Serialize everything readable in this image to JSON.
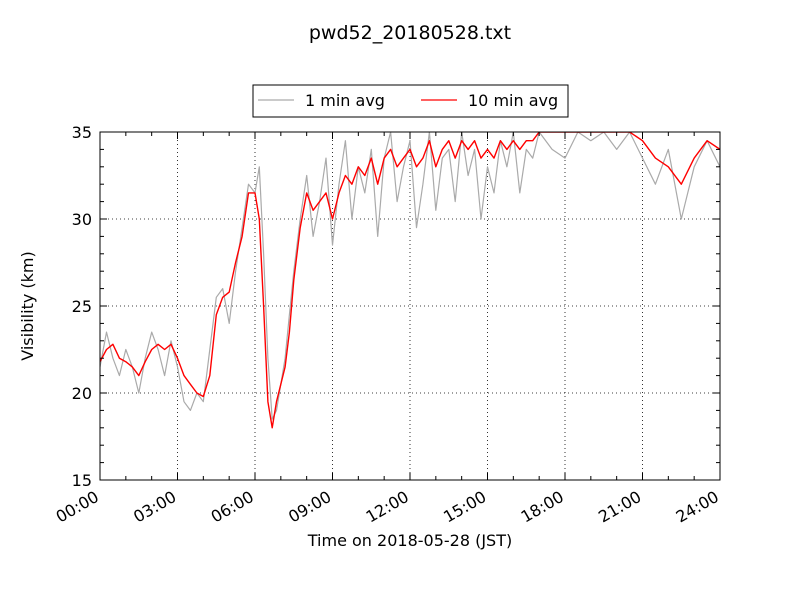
{
  "chart_data": {
    "type": "line",
    "title": "pwd52_20180528.txt",
    "xlabel": "Time on 2018-05-28 (JST)",
    "ylabel": "Visibility (km)",
    "xlim": [
      "00:00",
      "24:00"
    ],
    "ylim": [
      15,
      35
    ],
    "x_ticks": [
      "00:00",
      "03:00",
      "06:00",
      "09:00",
      "12:00",
      "15:00",
      "18:00",
      "21:00",
      "24:00"
    ],
    "y_ticks": [
      15,
      20,
      25,
      30,
      35
    ],
    "grid": true,
    "legend_placement": "top-center",
    "series": [
      {
        "name": "1 min avg",
        "color": "#aaaaaa",
        "x": [
          "00:00",
          "00:15",
          "00:30",
          "00:45",
          "01:00",
          "01:15",
          "01:30",
          "01:45",
          "02:00",
          "02:15",
          "02:30",
          "02:45",
          "03:00",
          "03:15",
          "03:30",
          "03:45",
          "04:00",
          "04:15",
          "04:30",
          "04:45",
          "05:00",
          "05:15",
          "05:30",
          "05:45",
          "06:00",
          "06:10",
          "06:20",
          "06:30",
          "06:40",
          "06:50",
          "07:00",
          "07:10",
          "07:20",
          "07:30",
          "07:45",
          "08:00",
          "08:15",
          "08:30",
          "08:45",
          "09:00",
          "09:15",
          "09:30",
          "09:45",
          "10:00",
          "10:15",
          "10:30",
          "10:45",
          "11:00",
          "11:15",
          "11:30",
          "11:45",
          "12:00",
          "12:15",
          "12:30",
          "12:45",
          "13:00",
          "13:15",
          "13:30",
          "13:45",
          "14:00",
          "14:15",
          "14:30",
          "14:45",
          "15:00",
          "15:15",
          "15:30",
          "15:45",
          "16:00",
          "16:15",
          "16:30",
          "16:45",
          "17:00",
          "17:30",
          "18:00",
          "18:30",
          "19:00",
          "19:30",
          "20:00",
          "20:30",
          "21:00",
          "21:30",
          "22:00",
          "22:30",
          "23:00",
          "23:30",
          "24:00"
        ],
        "y": [
          21.5,
          23.5,
          22.0,
          21.0,
          22.5,
          21.5,
          20.0,
          22.0,
          23.5,
          22.5,
          21.0,
          23.0,
          21.5,
          19.5,
          19.0,
          20.0,
          19.5,
          22.5,
          25.5,
          26.0,
          24.0,
          27.0,
          29.5,
          32.0,
          31.5,
          33.0,
          28.0,
          22.0,
          18.5,
          19.0,
          20.5,
          22.0,
          24.5,
          27.0,
          30.0,
          32.5,
          29.0,
          31.0,
          33.5,
          28.5,
          32.0,
          34.5,
          30.0,
          33.0,
          31.5,
          34.0,
          29.0,
          33.5,
          35.0,
          31.0,
          33.0,
          34.5,
          29.5,
          32.0,
          35.0,
          30.5,
          33.5,
          34.0,
          31.0,
          35.0,
          32.5,
          34.0,
          30.0,
          33.0,
          31.5,
          34.5,
          33.0,
          35.0,
          31.5,
          34.0,
          33.5,
          35.0,
          34.0,
          33.5,
          35.0,
          34.5,
          35.0,
          34.0,
          35.0,
          33.5,
          32.0,
          34.0,
          30.0,
          33.0,
          34.5,
          33.0
        ]
      },
      {
        "name": "10 min avg",
        "color": "#ff0000",
        "x": [
          "00:00",
          "00:15",
          "00:30",
          "00:45",
          "01:00",
          "01:15",
          "01:30",
          "01:45",
          "02:00",
          "02:15",
          "02:30",
          "02:45",
          "03:00",
          "03:15",
          "03:30",
          "03:45",
          "04:00",
          "04:15",
          "04:30",
          "04:45",
          "05:00",
          "05:15",
          "05:30",
          "05:45",
          "06:00",
          "06:10",
          "06:20",
          "06:30",
          "06:40",
          "06:50",
          "07:00",
          "07:10",
          "07:20",
          "07:30",
          "07:45",
          "08:00",
          "08:15",
          "08:30",
          "08:45",
          "09:00",
          "09:15",
          "09:30",
          "09:45",
          "10:00",
          "10:15",
          "10:30",
          "10:45",
          "11:00",
          "11:15",
          "11:30",
          "11:45",
          "12:00",
          "12:15",
          "12:30",
          "12:45",
          "13:00",
          "13:15",
          "13:30",
          "13:45",
          "14:00",
          "14:15",
          "14:30",
          "14:45",
          "15:00",
          "15:15",
          "15:30",
          "15:45",
          "16:00",
          "16:15",
          "16:30",
          "16:45",
          "17:00",
          "17:30",
          "18:00",
          "18:30",
          "19:00",
          "19:30",
          "20:00",
          "20:30",
          "21:00",
          "21:30",
          "22:00",
          "22:30",
          "23:00",
          "23:30",
          "24:00"
        ],
        "y": [
          21.8,
          22.5,
          22.8,
          22.0,
          21.8,
          21.5,
          21.0,
          21.8,
          22.5,
          22.8,
          22.5,
          22.8,
          22.0,
          21.0,
          20.5,
          20.0,
          19.8,
          21.0,
          24.5,
          25.5,
          25.8,
          27.5,
          29.0,
          31.5,
          31.5,
          30.0,
          25.0,
          19.5,
          18.0,
          19.5,
          20.5,
          21.5,
          23.5,
          26.5,
          29.5,
          31.5,
          30.5,
          31.0,
          31.5,
          30.0,
          31.5,
          32.5,
          32.0,
          33.0,
          32.5,
          33.5,
          32.0,
          33.5,
          34.0,
          33.0,
          33.5,
          34.0,
          33.0,
          33.5,
          34.5,
          33.0,
          34.0,
          34.5,
          33.5,
          34.5,
          34.0,
          34.5,
          33.5,
          34.0,
          33.5,
          34.5,
          34.0,
          34.5,
          34.0,
          34.5,
          34.5,
          35.0,
          35.0,
          35.0,
          35.0,
          35.0,
          35.0,
          35.0,
          35.0,
          34.5,
          33.5,
          33.0,
          32.0,
          33.5,
          34.5,
          34.0
        ]
      }
    ]
  }
}
